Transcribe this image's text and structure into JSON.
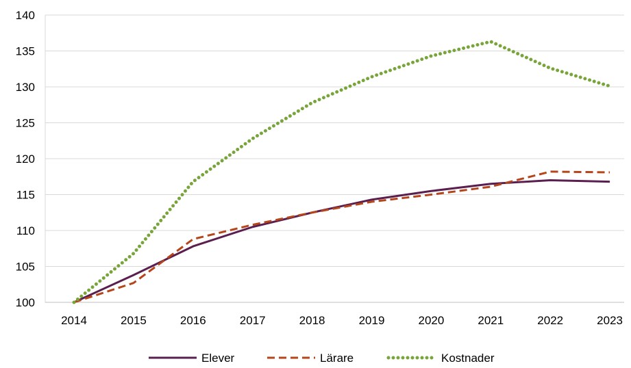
{
  "chart_data": {
    "type": "line",
    "x": [
      "2014",
      "2015",
      "2016",
      "2017",
      "2018",
      "2019",
      "2020",
      "2021",
      "2022",
      "2023"
    ],
    "ylim": [
      100,
      140
    ],
    "yticks": [
      100,
      105,
      110,
      115,
      120,
      125,
      130,
      135,
      140
    ],
    "grid": "horizontal",
    "legend_position": "bottom",
    "series": [
      {
        "name": "Elever",
        "color": "#5a1e4f",
        "style": "solid",
        "values": [
          100,
          103.8,
          107.8,
          110.5,
          112.5,
          114.3,
          115.5,
          116.5,
          117.0,
          116.8
        ]
      },
      {
        "name": "Lärare",
        "color": "#b5451b",
        "style": "dashed",
        "values": [
          100,
          102.7,
          108.8,
          110.8,
          112.5,
          114.0,
          115.0,
          116.1,
          118.2,
          118.1
        ]
      },
      {
        "name": "Kostnader",
        "color": "#77a539",
        "style": "dotted",
        "values": [
          100,
          106.8,
          116.8,
          122.8,
          127.8,
          131.4,
          134.3,
          136.3,
          132.6,
          130.1
        ]
      }
    ]
  }
}
